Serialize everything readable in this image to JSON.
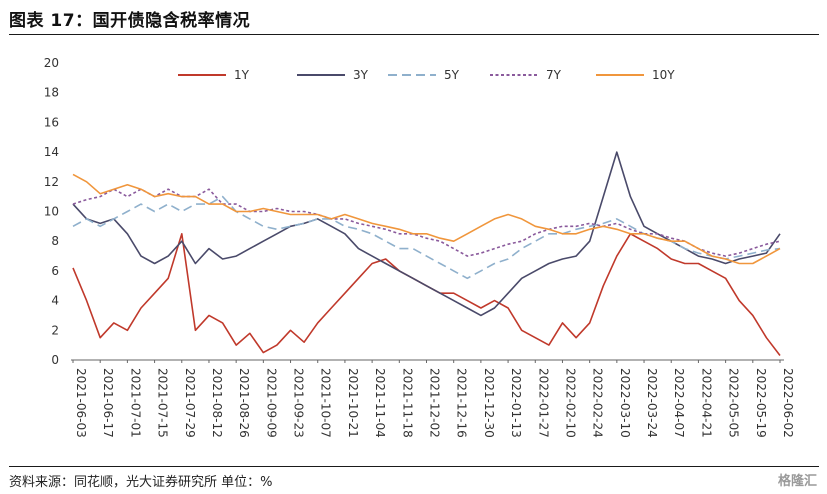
{
  "header": {
    "title": "图表 17：国开债隐含税率情况"
  },
  "footer": {
    "source": "资料来源：同花顺，光大证券研究所  单位：%",
    "watermark": "格隆汇"
  },
  "colors": {
    "1Y": "#c0392b",
    "3Y": "#4a4a6a",
    "5Y": "#8fb0cc",
    "7Y": "#8a5a9c",
    "10Y": "#f0963c"
  },
  "chart_data": {
    "type": "line",
    "title": "国开债隐含税率情况",
    "unit": "%",
    "ylim": [
      0,
      20
    ],
    "yticks": [
      0,
      2,
      4,
      6,
      8,
      10,
      12,
      14,
      16,
      18,
      20
    ],
    "grid": false,
    "legend_position": "top",
    "x_ticks": [
      "2021-06-03",
      "2021-06-17",
      "2021-07-01",
      "2021-07-15",
      "2021-07-29",
      "2021-08-12",
      "2021-08-26",
      "2021-09-09",
      "2021-09-23",
      "2021-10-07",
      "2021-10-21",
      "2021-11-04",
      "2021-11-18",
      "2021-12-02",
      "2021-12-16",
      "2021-12-30",
      "2022-01-13",
      "2022-01-27",
      "2022-02-10",
      "2022-02-24",
      "2022-03-10",
      "2022-03-24",
      "2022-04-07",
      "2022-04-21",
      "2022-05-05",
      "2022-05-19",
      "2022-06-02"
    ],
    "x": [
      "2021-06-03",
      "2021-06-10",
      "2021-06-17",
      "2021-06-24",
      "2021-07-01",
      "2021-07-08",
      "2021-07-15",
      "2021-07-22",
      "2021-07-29",
      "2021-08-05",
      "2021-08-12",
      "2021-08-19",
      "2021-08-26",
      "2021-09-02",
      "2021-09-09",
      "2021-09-16",
      "2021-09-23",
      "2021-09-30",
      "2021-10-07",
      "2021-10-14",
      "2021-10-21",
      "2021-10-28",
      "2021-11-04",
      "2021-11-11",
      "2021-11-18",
      "2021-11-25",
      "2021-12-02",
      "2021-12-09",
      "2021-12-16",
      "2021-12-23",
      "2021-12-30",
      "2022-01-06",
      "2022-01-13",
      "2022-01-20",
      "2022-01-27",
      "2022-02-03",
      "2022-02-10",
      "2022-02-17",
      "2022-02-24",
      "2022-03-03",
      "2022-03-10",
      "2022-03-17",
      "2022-03-24",
      "2022-03-31",
      "2022-04-07",
      "2022-04-14",
      "2022-04-21",
      "2022-04-28",
      "2022-05-05",
      "2022-05-12",
      "2022-05-19",
      "2022-05-26",
      "2022-06-02"
    ],
    "series": [
      {
        "name": "1Y",
        "style": "solid",
        "values": [
          6.2,
          4.0,
          1.5,
          2.5,
          2.0,
          3.5,
          4.5,
          5.5,
          8.5,
          2.0,
          3.0,
          2.5,
          1.0,
          1.8,
          0.5,
          1.0,
          2.0,
          1.2,
          2.5,
          3.5,
          4.5,
          5.5,
          6.5,
          6.8,
          6.0,
          5.5,
          5.0,
          4.5,
          4.5,
          4.0,
          3.5,
          4.0,
          3.5,
          2.0,
          1.5,
          1.0,
          2.5,
          1.5,
          2.5,
          5.0,
          7.0,
          8.5,
          8.0,
          7.5,
          6.8,
          6.5,
          6.5,
          6.0,
          5.5,
          4.0,
          3.0,
          1.5,
          0.3
        ]
      },
      {
        "name": "3Y",
        "style": "solid",
        "values": [
          10.5,
          9.5,
          9.2,
          9.5,
          8.5,
          7.0,
          6.5,
          7.0,
          8.0,
          6.5,
          7.5,
          6.8,
          7.0,
          7.5,
          8.0,
          8.5,
          9.0,
          9.2,
          9.5,
          9.0,
          8.5,
          7.5,
          7.0,
          6.5,
          6.0,
          5.5,
          5.0,
          4.5,
          4.0,
          3.5,
          3.0,
          3.5,
          4.5,
          5.5,
          6.0,
          6.5,
          6.8,
          7.0,
          8.0,
          11.0,
          14.0,
          11.0,
          9.0,
          8.5,
          8.0,
          7.5,
          7.0,
          6.8,
          6.5,
          6.8,
          7.0,
          7.2,
          8.5
        ]
      },
      {
        "name": "5Y",
        "style": "dashed",
        "values": [
          9.0,
          9.5,
          9.0,
          9.5,
          10.0,
          10.5,
          10.0,
          10.5,
          10.0,
          10.5,
          10.5,
          11.0,
          10.0,
          9.5,
          9.0,
          8.8,
          9.0,
          9.2,
          9.5,
          9.5,
          9.0,
          8.8,
          8.5,
          8.0,
          7.5,
          7.5,
          7.0,
          6.5,
          6.0,
          5.5,
          6.0,
          6.5,
          6.8,
          7.5,
          8.0,
          8.5,
          8.5,
          8.8,
          9.0,
          9.2,
          9.5,
          9.0,
          8.5,
          8.2,
          8.0,
          7.5,
          7.2,
          7.0,
          6.8,
          7.0,
          7.2,
          7.4,
          7.5
        ]
      },
      {
        "name": "7Y",
        "style": "dotted",
        "values": [
          10.5,
          10.8,
          11.0,
          11.5,
          11.0,
          11.5,
          11.0,
          11.5,
          11.0,
          11.0,
          11.5,
          10.5,
          10.5,
          10.0,
          10.0,
          10.2,
          10.0,
          10.0,
          9.8,
          9.5,
          9.5,
          9.2,
          9.0,
          8.8,
          8.5,
          8.5,
          8.2,
          8.0,
          7.5,
          7.0,
          7.2,
          7.5,
          7.8,
          8.0,
          8.5,
          8.8,
          9.0,
          9.0,
          9.2,
          9.0,
          9.2,
          8.8,
          8.5,
          8.5,
          8.2,
          8.0,
          7.5,
          7.2,
          7.0,
          7.2,
          7.5,
          7.8,
          8.0
        ]
      },
      {
        "name": "10Y",
        "style": "solid",
        "values": [
          12.5,
          12.0,
          11.2,
          11.5,
          11.8,
          11.5,
          11.0,
          11.2,
          11.0,
          11.0,
          10.5,
          10.5,
          10.0,
          10.0,
          10.2,
          10.0,
          9.8,
          9.8,
          9.8,
          9.5,
          9.8,
          9.5,
          9.2,
          9.0,
          8.8,
          8.5,
          8.5,
          8.2,
          8.0,
          8.5,
          9.0,
          9.5,
          9.8,
          9.5,
          9.0,
          8.8,
          8.5,
          8.5,
          8.8,
          9.0,
          8.8,
          8.5,
          8.5,
          8.2,
          8.0,
          8.0,
          7.5,
          7.0,
          6.8,
          6.5,
          6.5,
          7.0,
          7.5
        ]
      }
    ]
  }
}
